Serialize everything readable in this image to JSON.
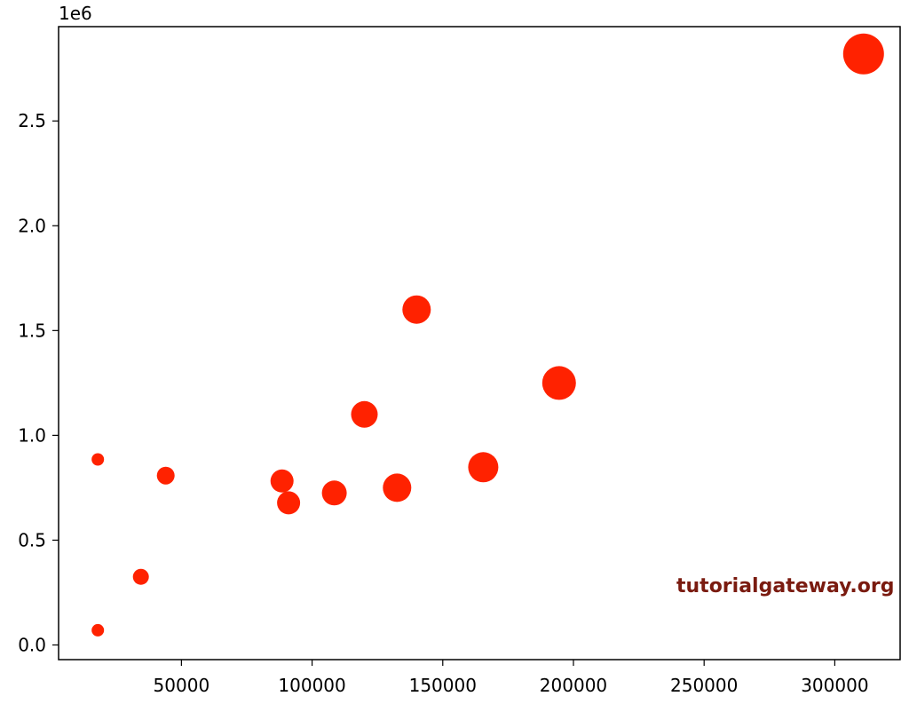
{
  "chart_data": {
    "type": "scatter",
    "title": "",
    "xlabel": "",
    "ylabel": "",
    "y_offset_label": "1e6",
    "xlim": [
      3000,
      325000
    ],
    "ylim": [
      -70000,
      2950000
    ],
    "x_ticks": [
      50000,
      100000,
      150000,
      200000,
      250000,
      300000
    ],
    "x_tick_labels": [
      "50000",
      "100000",
      "150000",
      "200000",
      "250000",
      "300000"
    ],
    "y_ticks": [
      0,
      500000,
      1000000,
      1500000,
      2000000,
      2500000
    ],
    "y_tick_labels": [
      "0.0",
      "0.5",
      "1.0",
      "1.5",
      "2.0",
      "2.5"
    ],
    "grid": false,
    "marker_color": "#ff2200",
    "series": [
      {
        "points": [
          {
            "x": 18000,
            "y": 70000,
            "size": 14
          },
          {
            "x": 18000,
            "y": 885000,
            "size": 14
          },
          {
            "x": 34500,
            "y": 325000,
            "size": 18
          },
          {
            "x": 44000,
            "y": 808000,
            "size": 20
          },
          {
            "x": 88500,
            "y": 782000,
            "size": 26
          },
          {
            "x": 91000,
            "y": 678000,
            "size": 26
          },
          {
            "x": 108500,
            "y": 725000,
            "size": 28
          },
          {
            "x": 120000,
            "y": 1100000,
            "size": 30
          },
          {
            "x": 132500,
            "y": 750000,
            "size": 32
          },
          {
            "x": 140000,
            "y": 1600000,
            "size": 32
          },
          {
            "x": 165500,
            "y": 848000,
            "size": 34
          },
          {
            "x": 194500,
            "y": 1250000,
            "size": 38
          },
          {
            "x": 311000,
            "y": 2820000,
            "size": 46
          }
        ]
      }
    ]
  },
  "watermark": {
    "text": "tutorialgateway.org",
    "color": "#7a1b10"
  }
}
